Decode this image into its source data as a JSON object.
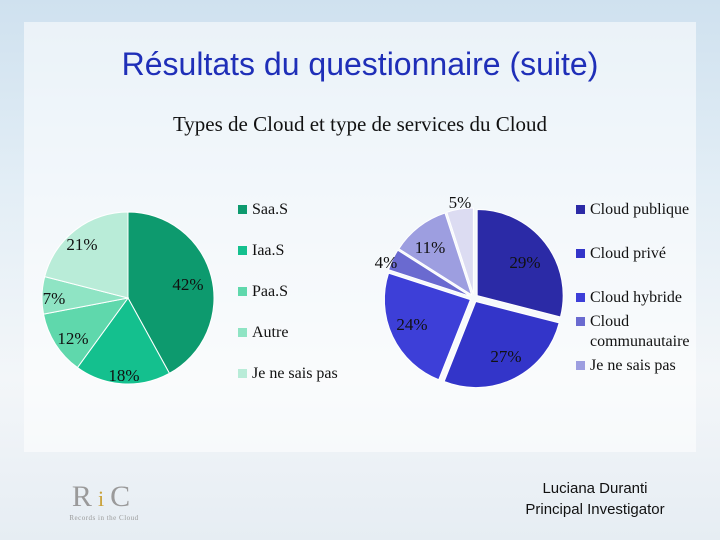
{
  "slide": {
    "title": "Résultats du questionnaire (suite)",
    "subtitle": "Types de Cloud et type de services du Cloud"
  },
  "footer": {
    "name": "Luciana Duranti",
    "role": "Principal Investigator"
  },
  "logo": {
    "text": "RiC",
    "tagline": "Records in the Cloud"
  },
  "chart_data": [
    {
      "type": "pie",
      "title": "",
      "legend_position": "right",
      "slices": [
        {
          "label": "SaaS",
          "value": 42,
          "text": "42%",
          "color": "#0d9a6e"
        },
        {
          "label": "IaaS",
          "value": 18,
          "text": "18%",
          "color": "#14c08e"
        },
        {
          "label": "PaaS",
          "value": 12,
          "text": "12%",
          "color": "#5fd8ac"
        },
        {
          "label": "Autre",
          "value": 7,
          "text": "7%",
          "color": "#8fe4c4"
        },
        {
          "label": "Je ne sais pas",
          "value": 21,
          "text": "21%",
          "color": "#b9ecd8"
        }
      ],
      "legend": [
        {
          "label": "Saa.S",
          "color": "#0d9a6e"
        },
        {
          "label": "Iaa.S",
          "color": "#14c08e"
        },
        {
          "label": "Paa.S",
          "color": "#5fd8ac"
        },
        {
          "label": "Autre",
          "color": "#8fe4c4"
        },
        {
          "label": "Je ne sais pas",
          "color": "#b9ecd8"
        }
      ]
    },
    {
      "type": "pie",
      "title": "",
      "legend_position": "right",
      "slices": [
        {
          "label": "Cloud publique",
          "value": 29,
          "text": "29%",
          "color": "#2b2aa6"
        },
        {
          "label": "Cloud privé",
          "value": 27,
          "text": "27%",
          "color": "#3335c9"
        },
        {
          "label": "Cloud hybride",
          "value": 24,
          "text": "24%",
          "color": "#3d3fd8"
        },
        {
          "label": "Cloud communautaire",
          "value": 4,
          "text": "4%",
          "color": "#6a6ad0"
        },
        {
          "label": "Je ne sais pas",
          "value": 11,
          "text": "11%",
          "color": "#9d9ee0"
        },
        {
          "label": "",
          "value": 5,
          "text": "5%",
          "color": "#dcdcf2"
        }
      ],
      "legend": [
        {
          "label": "Cloud publique",
          "color": "#2b2aa6"
        },
        {
          "label": "Cloud privé",
          "color": "#3335c9"
        },
        {
          "label": "Cloud hybride",
          "color": "#3d3fd8"
        },
        {
          "label": "Cloud communautaire",
          "color": "#6a6ad0"
        },
        {
          "label": "Je ne sais pas",
          "color": "#9d9ee0"
        }
      ]
    }
  ]
}
